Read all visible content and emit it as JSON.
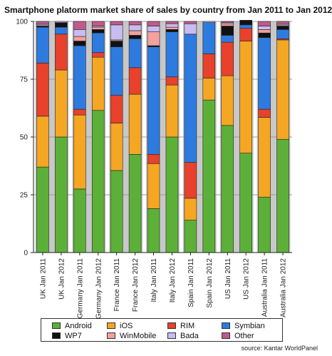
{
  "title": "Smartphone platorm market share of sales by country from Jan 2011 to Jan 2012",
  "source": "source: Kantar WorldPanel",
  "colors": {
    "Android": "#5cb038",
    "iOS": "#f5a623",
    "RIM": "#e8412c",
    "Symbian": "#2e7be0",
    "WP7": "#111111",
    "WinMobile": "#f2a0a0",
    "Bada": "#c8bdf0",
    "Other": "#c05a8c",
    "band": "#c8c8c8"
  },
  "chart_data": {
    "type": "bar",
    "stacked": true,
    "ylim": [
      0,
      100
    ],
    "yticks": [
      0,
      25,
      50,
      75,
      100
    ],
    "categories": [
      "UK Jan 2011",
      "UK Jan 2012",
      "Germany Jan 2011",
      "Germany Jan 2012",
      "France Jan 2011",
      "France Jan 2012",
      "Italy Jan 2011",
      "Italy Jan 2012",
      "Spain Jan 2011",
      "Spain Jan 2012",
      "US Jan 2011",
      "US Jan 2012",
      "Australia Jan 2011",
      "Australia Jan 2012"
    ],
    "series": [
      {
        "name": "Android",
        "values": [
          37,
          50,
          27.5,
          61.5,
          35.5,
          42.5,
          19,
          50,
          14,
          66,
          55,
          43,
          24,
          49
        ]
      },
      {
        "name": "iOS",
        "values": [
          22,
          29,
          32,
          23,
          20.5,
          26,
          19.5,
          22.5,
          9.5,
          9.5,
          21.5,
          48.5,
          34.5,
          43
        ]
      },
      {
        "name": "RIM",
        "values": [
          23,
          15.5,
          2.5,
          2,
          12,
          11.5,
          4,
          3.5,
          15.5,
          10.5,
          14.5,
          5.5,
          3.5,
          0.5
        ]
      },
      {
        "name": "Symbian",
        "values": [
          15.5,
          3,
          27.5,
          8.5,
          21,
          12.5,
          46.5,
          19.5,
          55.5,
          13.5,
          3,
          1.5,
          31,
          4
        ]
      },
      {
        "name": "WP7",
        "values": [
          0.5,
          2,
          2,
          1.5,
          2.5,
          1.5,
          0.5,
          1,
          0,
          0,
          4,
          2,
          2,
          1.5
        ]
      },
      {
        "name": "WinMobile",
        "values": [
          0.5,
          0,
          2,
          1,
          0.5,
          2,
          6,
          1,
          0,
          0,
          1,
          0,
          1.5,
          0.5
        ]
      },
      {
        "name": "Bada",
        "values": [
          0.5,
          0.5,
          3,
          0.5,
          6.5,
          2.5,
          2.5,
          1.5,
          4.5,
          0.5,
          0.5,
          0,
          1.5,
          0.5
        ]
      },
      {
        "name": "Other",
        "values": [
          1,
          0,
          3.5,
          2,
          1.5,
          1.5,
          2,
          1,
          1,
          0,
          0.5,
          0,
          2,
          1
        ]
      }
    ]
  },
  "legend": [
    {
      "label": "Android",
      "series": "Android"
    },
    {
      "label": "iOS",
      "series": "iOS"
    },
    {
      "label": "RIM",
      "series": "RIM"
    },
    {
      "label": "Symbian",
      "series": "Symbian"
    },
    {
      "label": "WP7",
      "series": "WP7"
    },
    {
      "label": "WinMobile",
      "series": "WinMobile"
    },
    {
      "label": "Bada",
      "series": "Bada"
    },
    {
      "label": "Other",
      "series": "Other"
    }
  ]
}
